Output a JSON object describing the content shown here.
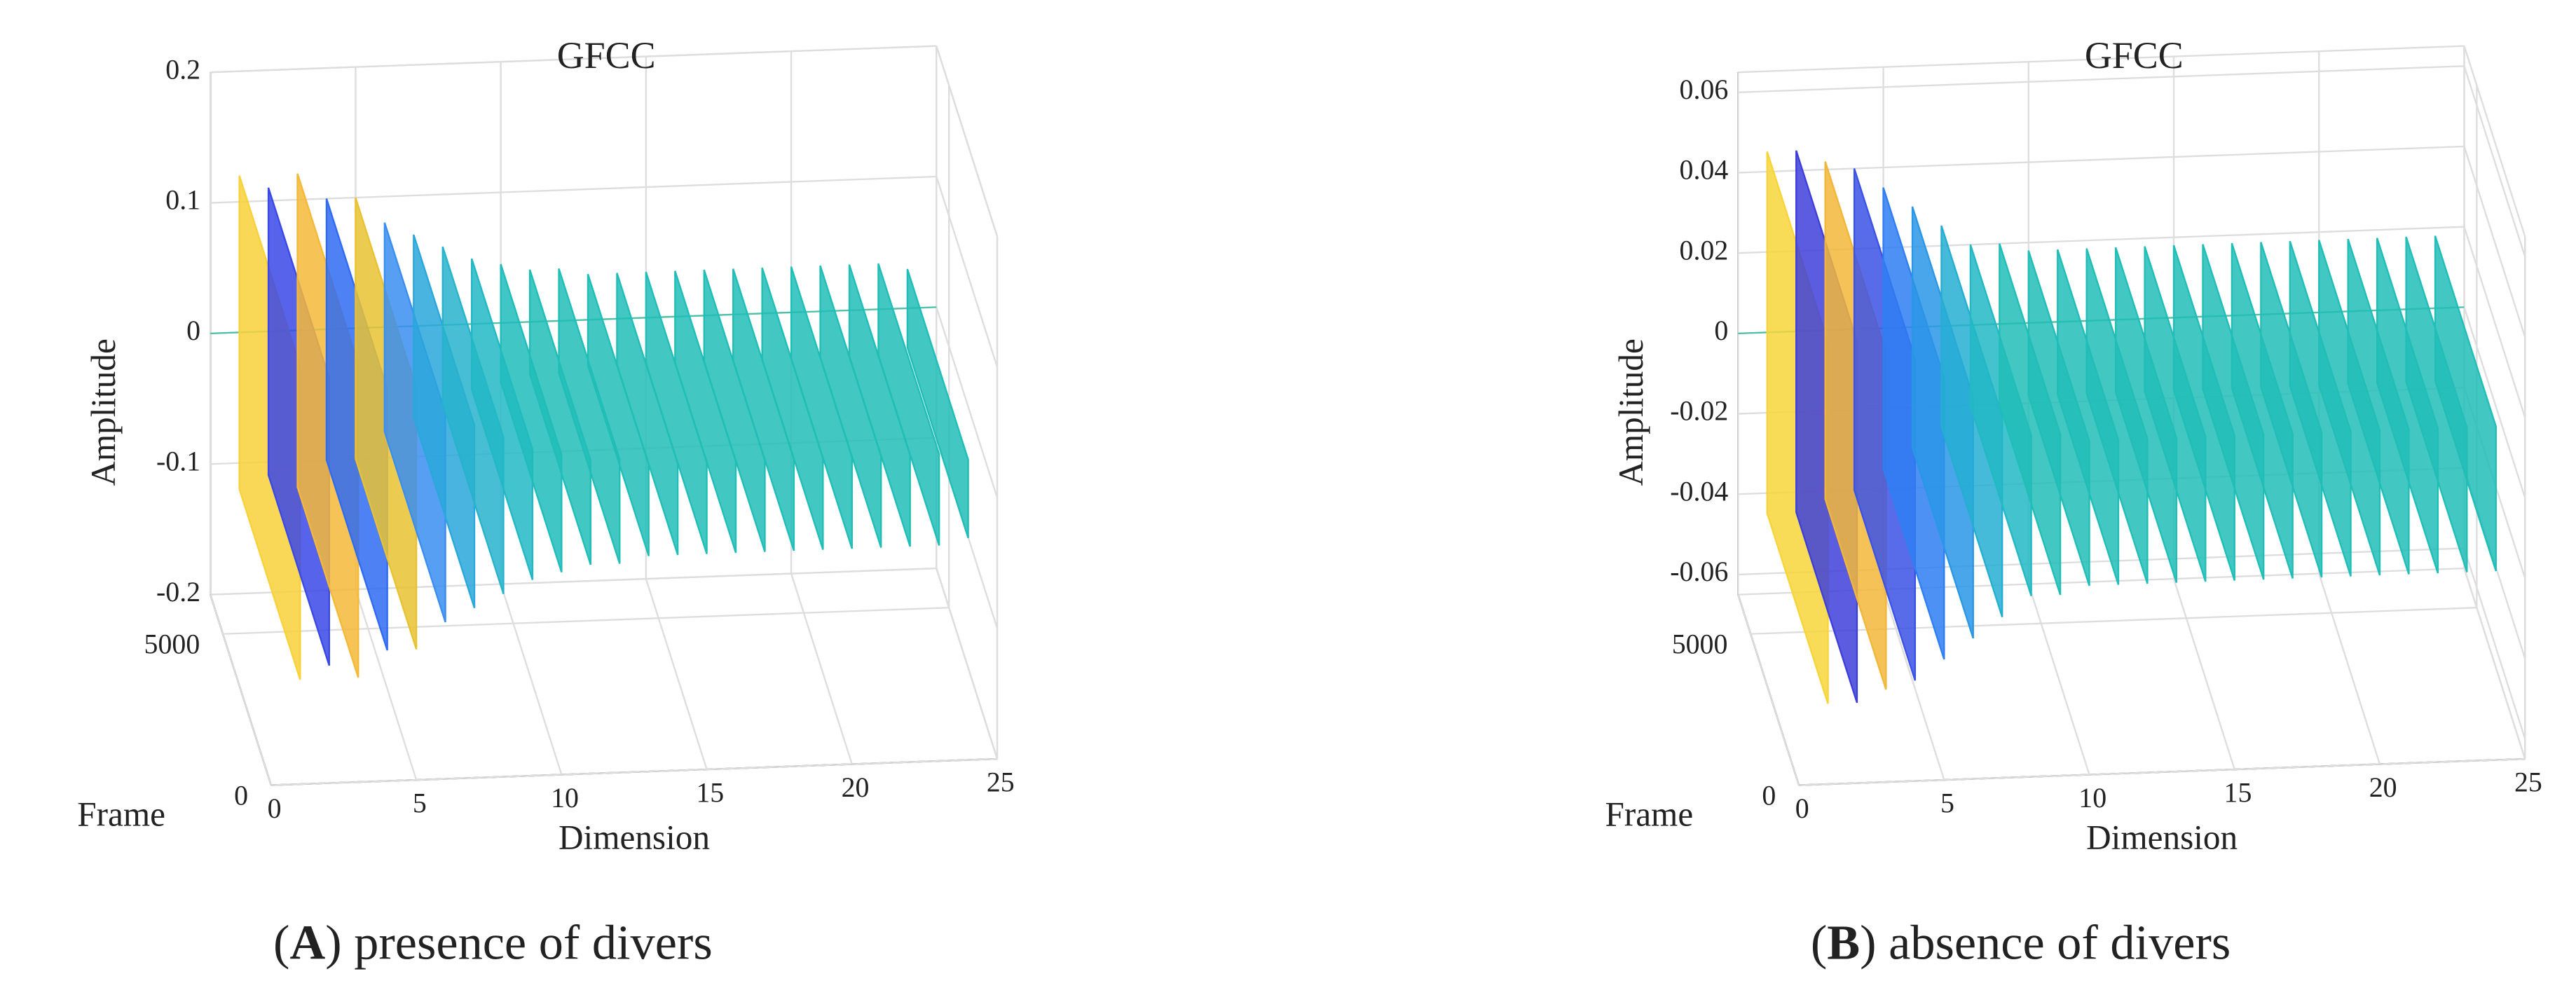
{
  "chart_data": [
    {
      "type": "surface3d",
      "title": "GFCC",
      "xlabel": "Dimension",
      "ylabel": "Frame",
      "zlabel": "Amplitude",
      "caption": [
        "(",
        "A",
        ") presence of divers"
      ],
      "xlim": [
        0,
        25
      ],
      "xticks": [
        0,
        5,
        10,
        15,
        20,
        25
      ],
      "ylim": [
        0,
        6300
      ],
      "yticks": [
        0,
        5000
      ],
      "zlim": [
        -0.2,
        0.2
      ],
      "zticks": [
        -0.2,
        -0.1,
        0,
        0.1,
        0.2
      ],
      "grid": true,
      "x": [
        1,
        2,
        3,
        4,
        5,
        6,
        7,
        8,
        9,
        10,
        11,
        12,
        13,
        14,
        15,
        16,
        17,
        18,
        19,
        20,
        21,
        22,
        23,
        24
      ],
      "values": [
        0.12,
        0.11,
        0.12,
        0.1,
        0.1,
        0.08,
        0.07,
        0.06,
        0.05,
        0.045,
        0.04,
        0.04,
        0.035,
        0.035,
        0.035,
        0.035,
        0.035,
        0.035,
        0.035,
        0.035,
        0.035,
        0.035,
        0.035,
        0.03
      ],
      "colors": [
        "#f9d13a",
        "#3a48e6",
        "#f4b938",
        "#2f6bf2",
        "#e9c233",
        "#3a8ef0",
        "#2aa7dc",
        "#27b3cc",
        "#22b8c4",
        "#20bcbc",
        "#21bdb7",
        "#21bdb7",
        "#21bdb7",
        "#21bdb7",
        "#21bdb7",
        "#21bdb7",
        "#21bdb7",
        "#21bdb7",
        "#21bdb7",
        "#21bdb7",
        "#21bdb7",
        "#21bdb7",
        "#21bdb7",
        "#21bdb7"
      ]
    },
    {
      "type": "surface3d",
      "title": "GFCC",
      "xlabel": "Dimension",
      "ylabel": "Frame",
      "zlabel": "Amplitude",
      "caption": [
        "(",
        "B",
        ") absence of divers"
      ],
      "xlim": [
        0,
        25
      ],
      "xticks": [
        0,
        5,
        10,
        15,
        20,
        25
      ],
      "ylim": [
        0,
        6300
      ],
      "yticks": [
        0,
        5000
      ],
      "zlim": [
        -0.065,
        0.065
      ],
      "zticks": [
        -0.06,
        -0.04,
        -0.02,
        0,
        0.02,
        0.04,
        0.06
      ],
      "grid": true,
      "x": [
        1,
        2,
        3,
        4,
        5,
        6,
        7,
        8,
        9,
        10,
        11,
        12,
        13,
        14,
        15,
        16,
        17,
        18,
        19,
        20,
        21,
        22,
        23,
        24
      ],
      "values": [
        0.045,
        0.045,
        0.042,
        0.04,
        0.035,
        0.03,
        0.025,
        0.02,
        0.02,
        0.018,
        0.018,
        0.018,
        0.018,
        0.018,
        0.018,
        0.018,
        0.018,
        0.018,
        0.018,
        0.018,
        0.018,
        0.018,
        0.018,
        0.018
      ],
      "colors": [
        "#f7d53a",
        "#3e3fd9",
        "#f2b73a",
        "#3b52e6",
        "#2f7ef2",
        "#2a97e6",
        "#25aed2",
        "#22b8c4",
        "#21bdb7",
        "#21bdb7",
        "#21bdb7",
        "#21bdb7",
        "#21bdb7",
        "#21bdb7",
        "#21bdb7",
        "#21bdb7",
        "#21bdb7",
        "#21bdb7",
        "#21bdb7",
        "#21bdb7",
        "#21bdb7",
        "#21bdb7",
        "#21bdb7",
        "#21bdb7"
      ]
    }
  ]
}
